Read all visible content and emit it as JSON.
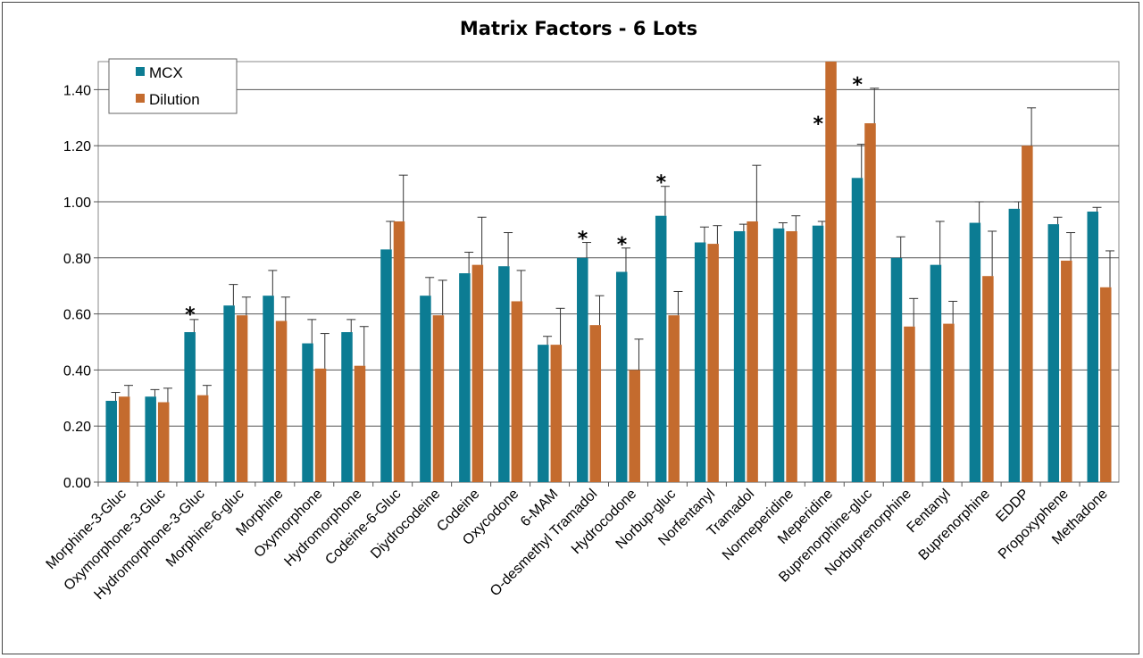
{
  "chart_data": {
    "type": "bar",
    "title": "Matrix Factors - 6 Lots",
    "xlabel": "",
    "ylabel": "",
    "ylim": [
      0,
      1.5
    ],
    "yticks": [
      "0.00",
      "0.20",
      "0.40",
      "0.60",
      "0.80",
      "1.00",
      "1.20",
      "1.40"
    ],
    "grid": true,
    "legend_position": "top-left",
    "categories": [
      "Morphine-3-Gluc",
      "Oxymorphone-3-Gluc",
      "Hydromorphone-3-Gluc",
      "Morphine-6-gluc",
      "Morphine",
      "Oxymorphone",
      "Hydromorphone",
      "Codeine-6-Gluc",
      "Diydrocodeine",
      "Codeine",
      "Oxycodone",
      "6-MAM",
      "O-desmethyl Tramadol",
      "Hydrocodone",
      "Norbup-gluc",
      "Norfentanyl",
      "Tramadol",
      "Normeperidine",
      "Meperidine",
      "Buprenorphine-gluc",
      "Norbuprenorphine",
      "Fentanyl",
      "Buprenorphine",
      "EDDP",
      "Propoxyphene",
      "Methadone"
    ],
    "series": [
      {
        "name": "MCX",
        "color": "#0c7c93",
        "values": [
          0.29,
          0.305,
          0.535,
          0.63,
          0.665,
          0.495,
          0.535,
          0.83,
          0.665,
          0.745,
          0.77,
          0.49,
          0.8,
          0.75,
          0.95,
          0.855,
          0.895,
          0.905,
          0.915,
          1.085,
          0.8,
          0.775,
          0.925,
          0.975,
          0.92,
          0.965
        ],
        "errors": [
          0.03,
          0.025,
          0.045,
          0.075,
          0.09,
          0.085,
          0.045,
          0.1,
          0.065,
          0.075,
          0.12,
          0.03,
          0.055,
          0.085,
          0.105,
          0.055,
          0.025,
          0.02,
          0.015,
          0.12,
          0.075,
          0.155,
          0.075,
          0.025,
          0.025,
          0.015
        ]
      },
      {
        "name": "Dilution",
        "color": "#c46b2e",
        "values": [
          0.305,
          0.285,
          0.31,
          0.595,
          0.575,
          0.405,
          0.415,
          0.93,
          0.595,
          0.775,
          0.645,
          0.49,
          0.56,
          0.4,
          0.595,
          0.85,
          0.93,
          0.895,
          1.5,
          1.28,
          0.555,
          0.565,
          0.735,
          1.2,
          0.79,
          0.695
        ],
        "errors": [
          0.04,
          0.05,
          0.035,
          0.065,
          0.085,
          0.125,
          0.14,
          0.165,
          0.125,
          0.17,
          0.11,
          0.13,
          0.105,
          0.11,
          0.085,
          0.065,
          0.2,
          0.055,
          0,
          0.125,
          0.1,
          0.08,
          0.16,
          0.135,
          0.1,
          0.13
        ]
      }
    ],
    "annotations": [
      {
        "category": "Hydromorphone-3-Gluc",
        "series": "MCX",
        "text": "*"
      },
      {
        "category": "O-desmethyl Tramadol",
        "series": "MCX",
        "text": "*"
      },
      {
        "category": "Hydrocodone",
        "series": "MCX",
        "text": "*"
      },
      {
        "category": "Norbup-gluc",
        "series": "MCX",
        "text": "*"
      },
      {
        "category": "Meperidine",
        "series": "MCX",
        "text": "*"
      },
      {
        "category": "Buprenorphine-gluc",
        "series": "MCX",
        "text": "*"
      }
    ]
  }
}
